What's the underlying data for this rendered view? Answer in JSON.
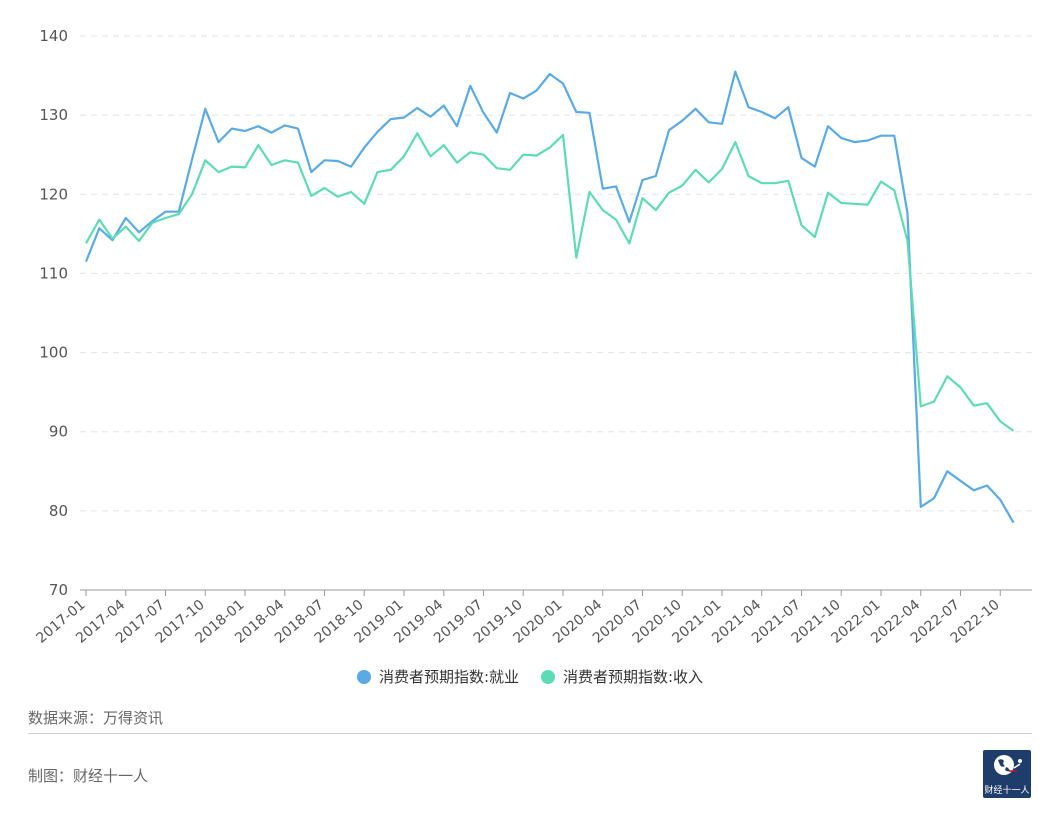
{
  "chart_data": {
    "type": "line",
    "title": "",
    "xlabel": "",
    "ylabel": "",
    "ylim": [
      70,
      140
    ],
    "yticks": [
      "140",
      "130",
      "120",
      "110",
      "100",
      "90",
      "80",
      "70"
    ],
    "grid": "horizontal dashed",
    "legend_position": "bottom",
    "x_tick_labels": [
      "2017-01",
      "2017-04",
      "2017-07",
      "2017-10",
      "2018-01",
      "2018-04",
      "2018-07",
      "2018-10",
      "2019-01",
      "2019-04",
      "2019-07",
      "2019-10",
      "2020-01",
      "2020-04",
      "2020-07",
      "2020-10",
      "2021-01",
      "2021-04",
      "2021-07",
      "2021-10",
      "2022-01",
      "2022-04",
      "2022-07",
      "2022-10"
    ],
    "x_start": "2017-01",
    "series": [
      {
        "name": "消费者预期指数:就业",
        "color": "#5aaae6",
        "values": [
          111.5,
          115.7,
          114.2,
          117.0,
          115.2,
          116.6,
          117.8,
          117.8,
          124.4,
          130.8,
          126.6,
          128.3,
          128.0,
          128.6,
          127.8,
          128.7,
          128.3,
          122.8,
          124.3,
          124.2,
          123.5,
          125.9,
          127.9,
          129.5,
          129.7,
          130.9,
          129.8,
          131.2,
          128.6,
          133.7,
          130.3,
          127.8,
          132.8,
          132.1,
          133.1,
          135.2,
          134.0,
          130.4,
          130.3,
          120.7,
          121.0,
          116.5,
          121.8,
          122.3,
          128.1,
          129.3,
          130.8,
          129.1,
          128.9,
          135.5,
          131.0,
          130.4,
          129.6,
          131.0,
          124.6,
          123.5,
          128.6,
          127.1,
          126.6,
          126.8,
          127.4,
          127.4,
          117.6,
          80.5,
          81.6,
          85.0,
          83.8,
          82.6,
          83.2,
          81.4,
          78.5
        ]
      },
      {
        "name": "消费者预期指数:收入",
        "color": "#5ddbb4",
        "values": [
          113.8,
          116.8,
          114.4,
          115.9,
          114.1,
          116.4,
          117.0,
          117.5,
          120.0,
          124.3,
          122.8,
          123.5,
          123.4,
          126.2,
          123.7,
          124.3,
          124.0,
          119.8,
          120.8,
          119.7,
          120.3,
          118.8,
          122.8,
          123.1,
          124.8,
          127.7,
          124.8,
          126.2,
          124.0,
          125.3,
          125.0,
          123.3,
          123.1,
          125.0,
          124.9,
          125.9,
          127.5,
          112.0,
          120.3,
          118.0,
          116.8,
          113.8,
          119.5,
          118.0,
          120.2,
          121.1,
          123.1,
          121.5,
          123.2,
          126.6,
          122.3,
          121.4,
          121.4,
          121.7,
          116.1,
          114.6,
          120.2,
          118.9,
          118.8,
          118.7,
          121.6,
          120.5,
          114.1,
          93.2,
          93.8,
          97.0,
          95.6,
          93.3,
          93.6,
          91.3,
          90.1
        ]
      }
    ]
  },
  "footer": {
    "source": "数据来源：万得资讯",
    "credit": "制图：财经十一人",
    "logo_text": "财经十一人"
  }
}
